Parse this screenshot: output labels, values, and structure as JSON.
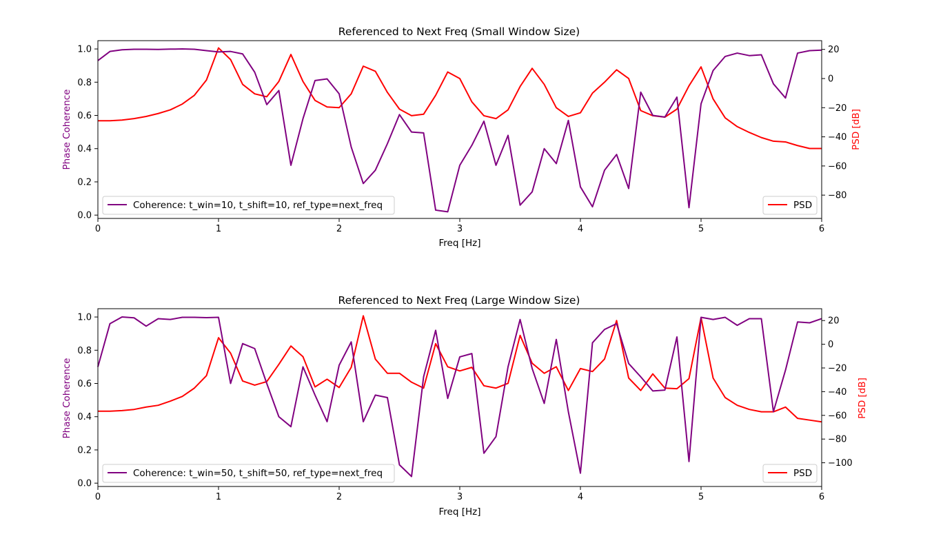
{
  "colors": {
    "coherence": "#800080",
    "psd": "#ff0000",
    "axis": "#000000"
  },
  "chart_data": [
    {
      "type": "line",
      "title": "Referenced to Next Freq (Small Window Size)",
      "xlabel": "Freq [Hz]",
      "ylabel": "Phase Coherence",
      "y2label": "PSD [dB]",
      "xlim": [
        0,
        6
      ],
      "ylim": [
        -0.02,
        1.05
      ],
      "y2lim": [
        -96,
        26
      ],
      "xticks": [
        "0",
        "1",
        "2",
        "3",
        "4",
        "5",
        "6"
      ],
      "yticks": [
        "0.0",
        "0.2",
        "0.4",
        "0.6",
        "0.8",
        "1.0"
      ],
      "y2ticks": [
        "20",
        "0",
        "−20",
        "−40",
        "−60",
        "−80"
      ],
      "legend_left": "top-left",
      "legend_right": "bottom-right",
      "series": [
        {
          "name": "Coherence: t_win=10, t_shift=10, ref_type=next_freq",
          "axis": "left",
          "x": [
            0,
            0.1,
            0.2,
            0.3,
            0.4,
            0.5,
            0.6,
            0.7,
            0.8,
            0.9,
            1.0,
            1.1,
            1.2,
            1.3,
            1.4,
            1.5,
            1.6,
            1.7,
            1.8,
            1.9,
            2.0,
            2.1,
            2.2,
            2.3,
            2.4,
            2.5,
            2.6,
            2.7,
            2.8,
            2.9,
            3.0,
            3.1,
            3.2,
            3.3,
            3.4,
            3.5,
            3.6,
            3.7,
            3.8,
            3.9,
            4.0,
            4.1,
            4.2,
            4.3,
            4.4,
            4.5,
            4.6,
            4.7,
            4.8,
            4.9,
            5.0,
            5.1,
            5.2,
            5.3,
            5.4,
            5.5,
            5.6,
            5.7,
            5.8,
            5.9,
            6.0
          ],
          "values": [
            0.93,
            0.985,
            0.995,
            0.998,
            0.998,
            0.997,
            0.999,
            1.0,
            0.998,
            0.99,
            0.982,
            0.985,
            0.97,
            0.86,
            0.665,
            0.75,
            0.3,
            0.58,
            0.81,
            0.82,
            0.73,
            0.41,
            0.19,
            0.27,
            0.43,
            0.605,
            0.5,
            0.495,
            0.03,
            0.02,
            0.3,
            0.42,
            0.565,
            0.3,
            0.48,
            0.06,
            0.14,
            0.4,
            0.31,
            0.57,
            0.17,
            0.05,
            0.27,
            0.365,
            0.16,
            0.74,
            0.6,
            0.59,
            0.71,
            0.045,
            0.67,
            0.87,
            0.955,
            0.975,
            0.96,
            0.965,
            0.79,
            0.705,
            0.975,
            0.99,
            0.993
          ]
        },
        {
          "name": "PSD",
          "axis": "right",
          "x": [
            0,
            0.1,
            0.2,
            0.3,
            0.4,
            0.5,
            0.6,
            0.7,
            0.8,
            0.9,
            1.0,
            1.1,
            1.2,
            1.3,
            1.4,
            1.5,
            1.6,
            1.7,
            1.8,
            1.9,
            2.0,
            2.1,
            2.2,
            2.3,
            2.4,
            2.5,
            2.6,
            2.7,
            2.8,
            2.9,
            3.0,
            3.1,
            3.2,
            3.3,
            3.4,
            3.5,
            3.6,
            3.7,
            3.8,
            3.9,
            4.0,
            4.1,
            4.2,
            4.3,
            4.4,
            4.5,
            4.6,
            4.7,
            4.8,
            4.9,
            5.0,
            5.1,
            5.2,
            5.3,
            5.4,
            5.5,
            5.6,
            5.7,
            5.8,
            5.9,
            6.0
          ],
          "values": [
            -29,
            -29,
            -28.5,
            -27.5,
            -26,
            -24,
            -21.5,
            -17.5,
            -11.5,
            -1,
            21,
            13,
            -4,
            -10.5,
            -12.5,
            -2,
            16.5,
            -2,
            -15,
            -19.5,
            -20,
            -10.5,
            8.5,
            5,
            -9.5,
            -21,
            -25.5,
            -24.5,
            -11.5,
            4.5,
            0,
            -16,
            -25.5,
            -27.5,
            -21.5,
            -5.5,
            7,
            -4,
            -20,
            -26,
            -23.5,
            -10,
            -2.5,
            6,
            0,
            -22,
            -25.5,
            -26.5,
            -21,
            -5,
            8,
            -14,
            -27,
            -33,
            -37,
            -40.5,
            -43,
            -43.5,
            -46,
            -48,
            -48
          ]
        }
      ]
    },
    {
      "type": "line",
      "title": "Referenced to Next Freq (Large Window Size)",
      "xlabel": "Freq [Hz]",
      "ylabel": "Phase Coherence",
      "y2label": "PSD [dB]",
      "xlim": [
        0,
        6
      ],
      "ylim": [
        -0.02,
        1.05
      ],
      "y2lim": [
        -120,
        30
      ],
      "xticks": [
        "0",
        "1",
        "2",
        "3",
        "4",
        "5",
        "6"
      ],
      "yticks": [
        "0.0",
        "0.2",
        "0.4",
        "0.6",
        "0.8",
        "1.0"
      ],
      "y2ticks": [
        "20",
        "0",
        "−20",
        "−40",
        "−60",
        "−80",
        "−100"
      ],
      "legend_left": "bottom-left",
      "legend_right": "bottom-right",
      "series": [
        {
          "name": "Coherence: t_win=50, t_shift=50, ref_type=next_freq",
          "axis": "left",
          "x": [
            0,
            0.1,
            0.2,
            0.3,
            0.4,
            0.5,
            0.6,
            0.7,
            0.8,
            0.9,
            1.0,
            1.1,
            1.2,
            1.3,
            1.4,
            1.5,
            1.6,
            1.7,
            1.8,
            1.9,
            2.0,
            2.1,
            2.2,
            2.3,
            2.4,
            2.5,
            2.6,
            2.7,
            2.8,
            2.9,
            3.0,
            3.1,
            3.2,
            3.3,
            3.4,
            3.5,
            3.6,
            3.7,
            3.8,
            3.9,
            4.0,
            4.1,
            4.2,
            4.3,
            4.4,
            4.5,
            4.6,
            4.7,
            4.8,
            4.9,
            5.0,
            5.1,
            5.2,
            5.3,
            5.4,
            5.5,
            5.6,
            5.7,
            5.8,
            5.9,
            6.0
          ],
          "values": [
            0.7,
            0.96,
            1.0,
            0.995,
            0.945,
            0.99,
            0.985,
            0.998,
            0.998,
            0.996,
            0.998,
            0.6,
            0.84,
            0.81,
            0.6,
            0.4,
            0.34,
            0.7,
            0.53,
            0.37,
            0.71,
            0.85,
            0.37,
            0.53,
            0.515,
            0.11,
            0.04,
            0.64,
            0.92,
            0.51,
            0.76,
            0.78,
            0.18,
            0.28,
            0.7,
            0.985,
            0.69,
            0.48,
            0.865,
            0.43,
            0.06,
            0.845,
            0.925,
            0.96,
            0.72,
            0.64,
            0.555,
            0.56,
            0.88,
            0.13,
            0.998,
            0.985,
            0.998,
            0.95,
            0.99,
            0.99,
            0.43,
            0.68,
            0.97,
            0.965,
            0.99
          ]
        },
        {
          "name": "PSD",
          "axis": "right",
          "x": [
            0,
            0.1,
            0.2,
            0.3,
            0.4,
            0.5,
            0.6,
            0.7,
            0.8,
            0.9,
            1.0,
            1.1,
            1.2,
            1.3,
            1.4,
            1.5,
            1.6,
            1.7,
            1.8,
            1.9,
            2.0,
            2.1,
            2.2,
            2.3,
            2.4,
            2.5,
            2.6,
            2.7,
            2.8,
            2.9,
            3.0,
            3.1,
            3.2,
            3.3,
            3.4,
            3.5,
            3.6,
            3.7,
            3.8,
            3.9,
            4.0,
            4.1,
            4.2,
            4.3,
            4.4,
            4.5,
            4.6,
            4.7,
            4.8,
            4.9,
            5.0,
            5.1,
            5.2,
            5.3,
            5.4,
            5.5,
            5.6,
            5.7,
            5.8,
            5.9,
            6.0
          ],
          "values": [
            -56.5,
            -56.5,
            -56,
            -55,
            -53,
            -51.5,
            -48,
            -44,
            -37,
            -26.5,
            5.5,
            -7.5,
            -31,
            -34.5,
            -31.5,
            -17,
            -1.5,
            -10.5,
            -36,
            -29.5,
            -36.5,
            -19.5,
            24,
            -12.5,
            -24.5,
            -24.5,
            -32,
            -37,
            0.5,
            -19,
            -22.5,
            -19.5,
            -35,
            -37,
            -33,
            7.5,
            -16,
            -24.5,
            -19,
            -39,
            -20.5,
            -23,
            -12.5,
            20,
            -28.5,
            -39,
            -25,
            -37,
            -37.5,
            -29,
            22.5,
            -28.5,
            -45,
            -51.5,
            -55,
            -57,
            -57,
            -53,
            -62.5,
            -64,
            -65.5
          ]
        }
      ]
    }
  ]
}
